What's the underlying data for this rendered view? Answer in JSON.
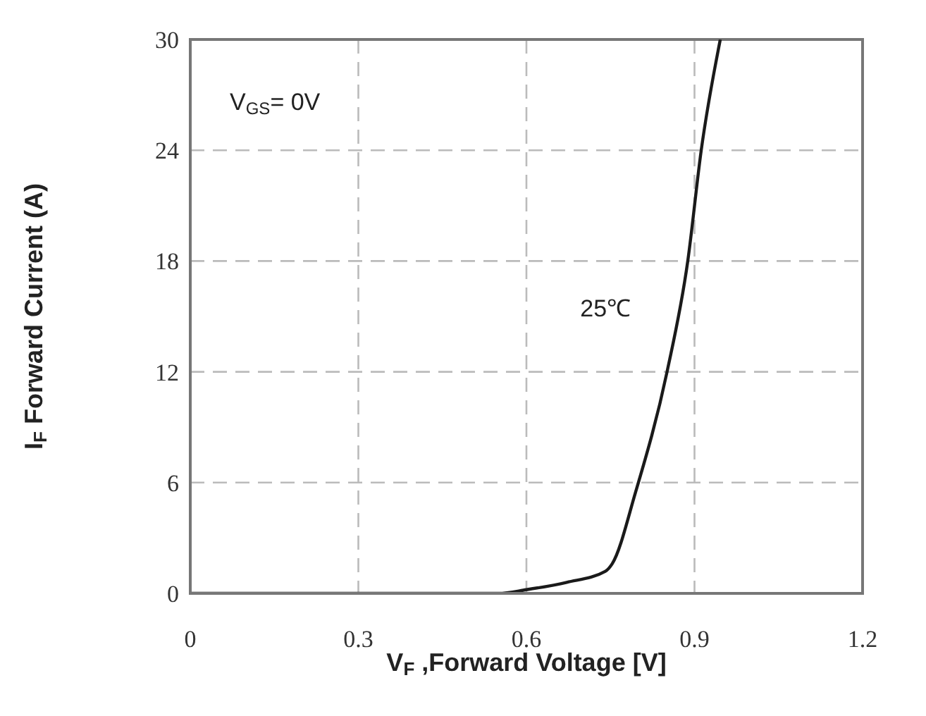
{
  "chart_data": {
    "type": "line",
    "xlabel": "V$_{F}$ ,Forward Voltage [V]",
    "ylabel": "I$_{F}$ Forward Current (A)",
    "annotations": [
      "V$_{GS}$= 0V",
      "25℃"
    ],
    "x": [
      0,
      0.3,
      0.5,
      0.55,
      0.6,
      0.672,
      0.741,
      0.753,
      0.795,
      0.851,
      0.888,
      0.912,
      0.946
    ],
    "series": [
      {
        "color": "#1a1a1a",
        "values": [
          0,
          0,
          0,
          0,
          0.2,
          0.6,
          1.2,
          1.6,
          5.5,
          12,
          18,
          24,
          30
        ]
      }
    ],
    "xlim": [
      0,
      1.2
    ],
    "xticks": [
      0,
      0.3,
      0.6,
      0.9,
      1.2
    ],
    "ylim": [
      0,
      30
    ],
    "yticks": [
      0,
      6,
      12,
      18,
      24,
      30
    ],
    "grid": true,
    "marker": "none",
    "line_style": "solid"
  }
}
